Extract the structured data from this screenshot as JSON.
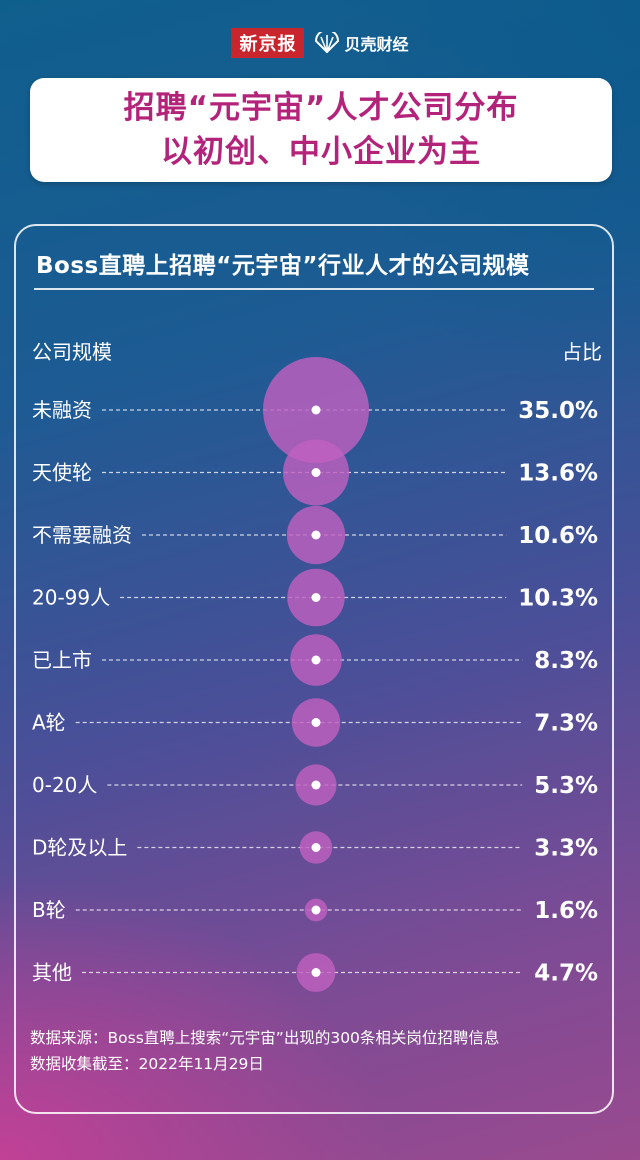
{
  "masthead": {
    "brand_left": "新京报",
    "brand_right": "贝壳财经"
  },
  "headline": {
    "line1": "招聘“元宇宙”人才公司分布",
    "line2": "以初创、中小企业为主"
  },
  "panel": {
    "title": "Boss直聘上招聘“元宇宙”行业人才的公司规模",
    "col_left": "公司规模",
    "col_right": "占比"
  },
  "chart_data": {
    "type": "bubble",
    "title": "Boss直聘上招聘“元宇宙”行业人才的公司规模",
    "categories": [
      "未融资",
      "天使轮",
      "不需要融资",
      "20-99人",
      "已上市",
      "A轮",
      "0-20人",
      "D轮及以上",
      "B轮",
      "其他"
    ],
    "values": [
      35.0,
      13.6,
      10.6,
      10.3,
      8.3,
      7.3,
      5.3,
      3.3,
      1.6,
      4.7
    ],
    "labels": [
      "35.0%",
      "13.6%",
      "10.6%",
      "10.3%",
      "8.3%",
      "7.3%",
      "5.3%",
      "3.3%",
      "1.6%",
      "4.7%"
    ],
    "unit": "%",
    "bubble_color": "#c060c0"
  },
  "footnote": {
    "line1": "数据来源：Boss直聘上搜索“元宇宙”出现的300条相关岗位招聘信息",
    "line2": "数据收集截至：2022年11月29日"
  }
}
